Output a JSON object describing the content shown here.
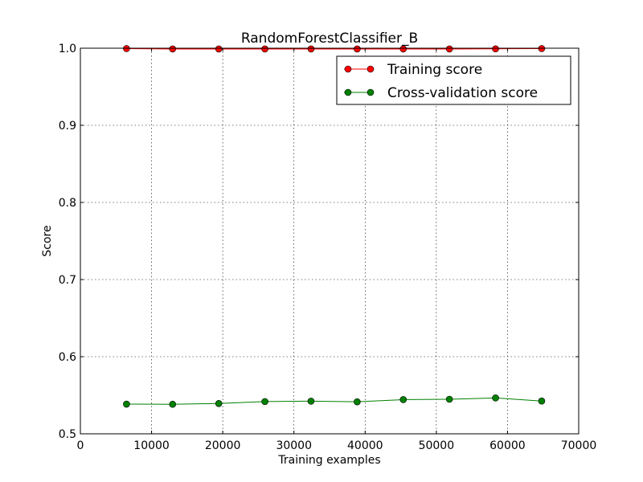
{
  "chart_data": {
    "type": "line",
    "title": "RandomForestClassifier_B",
    "xlabel": "Training examples",
    "ylabel": "Score",
    "xlim": [
      0,
      70000
    ],
    "ylim": [
      0.5,
      1.0
    ],
    "x_ticks": [
      0,
      10000,
      20000,
      30000,
      40000,
      50000,
      60000,
      70000
    ],
    "y_ticks": [
      0.5,
      0.6,
      0.7,
      0.8,
      0.9,
      1.0
    ],
    "x_tick_labels": [
      "0",
      "10000",
      "20000",
      "30000",
      "40000",
      "50000",
      "60000",
      "70000"
    ],
    "y_tick_labels": [
      "0.5",
      "0.6",
      "0.7",
      "0.8",
      "0.9",
      "1.0"
    ],
    "grid": true,
    "legend_position": "top-right",
    "x": [
      6480,
      12960,
      19440,
      25920,
      32400,
      38880,
      45360,
      51840,
      58320,
      64800
    ],
    "series": [
      {
        "name": "Training score",
        "color": "#ff0000",
        "values": [
          0.9995,
          0.999,
          0.999,
          0.999,
          0.999,
          0.999,
          0.999,
          0.999,
          0.9992,
          0.9995
        ]
      },
      {
        "name": "Cross-validation score",
        "color": "#008000",
        "values": [
          0.5385,
          0.5383,
          0.5393,
          0.5418,
          0.5423,
          0.5415,
          0.5443,
          0.5448,
          0.5465,
          0.5425
        ]
      }
    ]
  }
}
